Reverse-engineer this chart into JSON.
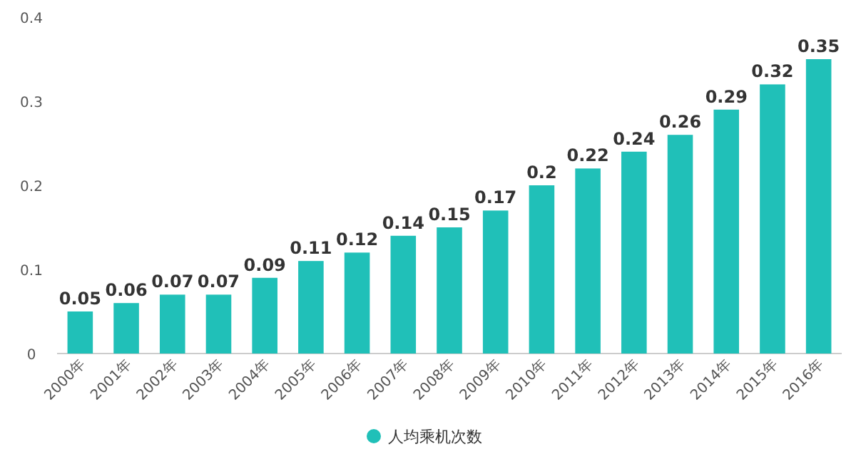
{
  "chart_data": {
    "type": "bar",
    "categories": [
      "2000年",
      "2001年",
      "2002年",
      "2003年",
      "2004年",
      "2005年",
      "2006年",
      "2007年",
      "2008年",
      "2009年",
      "2010年",
      "2011年",
      "2012年",
      "2013年",
      "2014年",
      "2015年",
      "2016年"
    ],
    "series": [
      {
        "name": "人均乘机次数",
        "color": "#20c0b8",
        "values": [
          0.05,
          0.06,
          0.07,
          0.07,
          0.09,
          0.11,
          0.12,
          0.14,
          0.15,
          0.17,
          0.2,
          0.22,
          0.24,
          0.26,
          0.29,
          0.32,
          0.35
        ]
      }
    ],
    "ylim": [
      0,
      0.4
    ],
    "yticks": [
      0,
      0.1,
      0.2,
      0.3,
      0.4
    ],
    "data_labels": true,
    "legend": "bottom"
  }
}
